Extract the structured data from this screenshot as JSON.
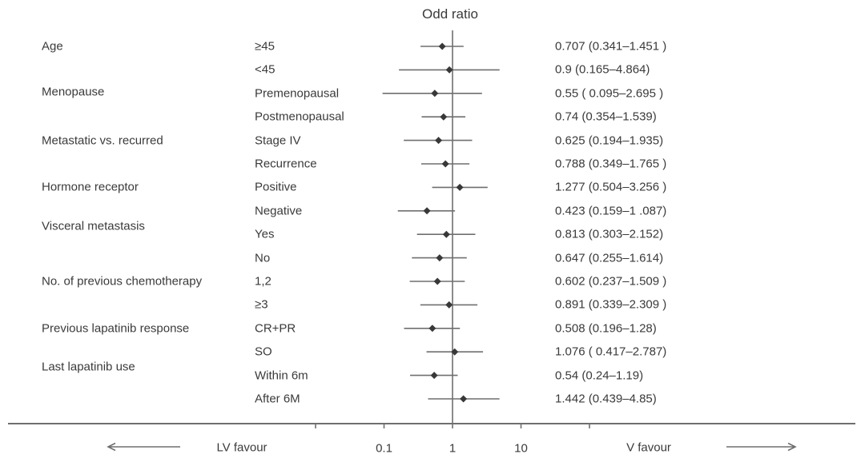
{
  "colors": {
    "text": "#3a3a3a",
    "line": "#6f6f6f",
    "marker": "#383838"
  },
  "chart_data": {
    "type": "scatter",
    "variant": "forest-plot",
    "title": "Odd ratio",
    "x_scale": "log10",
    "x_ticks": [
      0.01,
      0.1,
      1,
      10,
      100
    ],
    "x_tick_labels": [
      "",
      "0.1",
      "1",
      "10",
      ""
    ],
    "reference_line": 1,
    "left_annotation": "LV favour",
    "right_annotation": "V favour",
    "groups": [
      {
        "label": "Age",
        "rows": [
          {
            "label": "≥45",
            "or": 0.707,
            "low": 0.341,
            "high": 1.451,
            "text": "0.707 (0.341–1.451 )"
          },
          {
            "label": "<45",
            "or": 0.9,
            "low": 0.165,
            "high": 4.864,
            "text": "0.9 (0.165–4.864)"
          }
        ]
      },
      {
        "label": "Menopause",
        "rows": [
          {
            "label": "Premenopausal",
            "or": 0.55,
            "low": 0.095,
            "high": 2.695,
            "text": "0.55 ( 0.095–2.695 )"
          },
          {
            "label": "Postmenopausal",
            "or": 0.74,
            "low": 0.354,
            "high": 1.539,
            "text": "0.74 (0.354–1.539)"
          }
        ]
      },
      {
        "label": "Metastatic vs. recurred",
        "rows": [
          {
            "label": "Stage IV",
            "or": 0.625,
            "low": 0.194,
            "high": 1.935,
            "text": "0.625 (0.194–1.935)"
          },
          {
            "label": "Recurrence",
            "or": 0.788,
            "low": 0.349,
            "high": 1.765,
            "text": "0.788 (0.349–1.765 )"
          }
        ]
      },
      {
        "label": "Hormone receptor",
        "rows": [
          {
            "label": "Positive",
            "or": 1.277,
            "low": 0.504,
            "high": 3.256,
            "text": "1.277 (0.504–3.256 )"
          },
          {
            "label": "Negative",
            "or": 0.423,
            "low": 0.159,
            "high": 1.087,
            "text": "0.423 (0.159–1 .087)"
          }
        ]
      },
      {
        "label": "Visceral metastasis",
        "rows": [
          {
            "label": "Yes",
            "or": 0.813,
            "low": 0.303,
            "high": 2.152,
            "text": "0.813 (0.303–2.152)"
          },
          {
            "label": "No",
            "or": 0.647,
            "low": 0.255,
            "high": 1.614,
            "text": "0.647 (0.255–1.614)"
          }
        ]
      },
      {
        "label": "No. of previous chemotherapy",
        "rows": [
          {
            "label": "1,2",
            "or": 0.602,
            "low": 0.237,
            "high": 1.509,
            "text": "0.602 (0.237–1.509 )"
          },
          {
            "label": "≥3",
            "or": 0.891,
            "low": 0.339,
            "high": 2.309,
            "text": "0.891 (0.339–2.309 )"
          }
        ]
      },
      {
        "label": "Previous lapatinib response",
        "rows": [
          {
            "label": "CR+PR",
            "or": 0.508,
            "low": 0.196,
            "high": 1.28,
            "text": "0.508 (0.196–1.28)"
          },
          {
            "label": "SO",
            "or": 1.076,
            "low": 0.417,
            "high": 2.787,
            "text": "1.076 ( 0.417–2.787)"
          }
        ]
      },
      {
        "label": "Last lapatinib use",
        "rows": [
          {
            "label": "Within 6m",
            "or": 0.54,
            "low": 0.24,
            "high": 1.19,
            "text": "0.54 (0.24–1.19)"
          },
          {
            "label": "After 6M",
            "or": 1.442,
            "low": 0.439,
            "high": 4.85,
            "text": "1.442 (0.439–4.85)"
          }
        ]
      }
    ]
  }
}
